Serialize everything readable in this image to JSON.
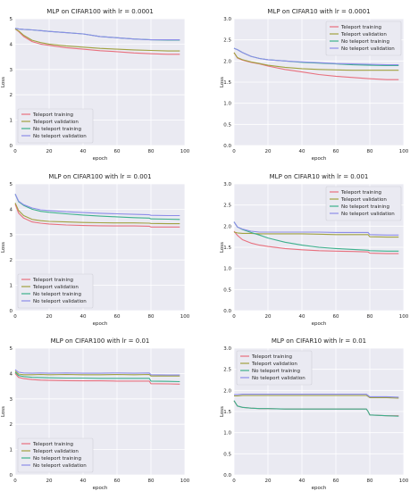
{
  "figure": {
    "style": "seaborn-darkgrid",
    "plot_bg": "#eaeaf2",
    "grid_color": "#ffffff",
    "series_colors": {
      "Teleport training": "#e8707e",
      "Teleport validation": "#a0a140",
      "No teleport training": "#3db08c",
      "No teleport validation": "#8c8ce8"
    }
  },
  "chart_data": [
    {
      "type": "line",
      "title": "MLP on CIFAR100 with lr = 0.0001",
      "xlabel": "epoch",
      "ylabel": "Loss",
      "xlim": [
        0,
        100
      ],
      "ylim": [
        0,
        5
      ],
      "xticks": [
        0,
        20,
        40,
        60,
        80,
        100
      ],
      "yticks": [
        0,
        1,
        2,
        3,
        4,
        5
      ],
      "xtick_labels": [
        "0",
        "20",
        "40",
        "60",
        "80",
        "100"
      ],
      "ytick_labels": [
        "0",
        "1",
        "2",
        "3",
        "4",
        "5"
      ],
      "legend_loc": "lower-left",
      "x": [
        0,
        2,
        5,
        10,
        15,
        20,
        30,
        40,
        50,
        60,
        70,
        80,
        90,
        97
      ],
      "series": [
        {
          "name": "Teleport training",
          "values": [
            4.6,
            4.5,
            4.3,
            4.1,
            4.0,
            3.95,
            3.86,
            3.8,
            3.74,
            3.7,
            3.65,
            3.62,
            3.6,
            3.6
          ]
        },
        {
          "name": "Teleport validation",
          "values": [
            4.6,
            4.52,
            4.35,
            4.15,
            4.06,
            4.0,
            3.93,
            3.88,
            3.83,
            3.8,
            3.77,
            3.75,
            3.73,
            3.73
          ]
        },
        {
          "name": "No teleport training",
          "values": [
            4.62,
            4.6,
            4.58,
            4.56,
            4.53,
            4.5,
            4.45,
            4.4,
            4.3,
            4.25,
            4.2,
            4.17,
            4.16,
            4.16
          ]
        },
        {
          "name": "No teleport validation",
          "values": [
            4.62,
            4.6,
            4.58,
            4.56,
            4.53,
            4.5,
            4.45,
            4.4,
            4.3,
            4.25,
            4.2,
            4.17,
            4.17,
            4.17
          ]
        }
      ]
    },
    {
      "type": "line",
      "title": "MLP on CIFAR10 with lr = 0.0001",
      "xlabel": "epoch",
      "ylabel": "Loss",
      "xlim": [
        0,
        100
      ],
      "ylim": [
        0,
        3
      ],
      "xticks": [
        0,
        20,
        40,
        60,
        80,
        100
      ],
      "yticks": [
        0,
        0.5,
        1.0,
        1.5,
        2.0,
        2.5,
        3.0
      ],
      "xtick_labels": [
        "0",
        "20",
        "40",
        "60",
        "80",
        "100"
      ],
      "ytick_labels": [
        "0.0",
        "0.5",
        "1.0",
        "1.5",
        "2.0",
        "2.5",
        "3.0"
      ],
      "legend_loc": "upper-right",
      "x": [
        0,
        2,
        5,
        10,
        15,
        20,
        30,
        40,
        50,
        60,
        70,
        80,
        90,
        97
      ],
      "series": [
        {
          "name": "Teleport training",
          "values": [
            2.2,
            2.07,
            2.02,
            1.97,
            1.93,
            1.88,
            1.8,
            1.74,
            1.68,
            1.64,
            1.61,
            1.58,
            1.56,
            1.56
          ]
        },
        {
          "name": "Teleport validation",
          "values": [
            2.2,
            2.08,
            2.03,
            1.98,
            1.94,
            1.9,
            1.85,
            1.82,
            1.8,
            1.79,
            1.78,
            1.78,
            1.78,
            1.78
          ]
        },
        {
          "name": "No teleport training",
          "values": [
            2.3,
            2.27,
            2.2,
            2.11,
            2.06,
            2.03,
            2.0,
            1.97,
            1.95,
            1.93,
            1.91,
            1.9,
            1.89,
            1.89
          ]
        },
        {
          "name": "No teleport validation",
          "values": [
            2.3,
            2.27,
            2.2,
            2.11,
            2.06,
            2.03,
            2.0,
            1.98,
            1.96,
            1.94,
            1.93,
            1.92,
            1.91,
            1.91
          ]
        }
      ]
    },
    {
      "type": "line",
      "title": "MLP on CIFAR100 with lr = 0.001",
      "xlabel": "epoch",
      "ylabel": "Loss",
      "xlim": [
        0,
        100
      ],
      "ylim": [
        0,
        5
      ],
      "xticks": [
        0,
        20,
        40,
        60,
        80,
        100
      ],
      "yticks": [
        0,
        1,
        2,
        3,
        4,
        5
      ],
      "xtick_labels": [
        "0",
        "20",
        "40",
        "60",
        "80",
        "100"
      ],
      "ytick_labels": [
        "0",
        "1",
        "2",
        "3",
        "4",
        "5"
      ],
      "legend_loc": "lower-left",
      "x": [
        0,
        2,
        5,
        10,
        15,
        20,
        30,
        40,
        50,
        60,
        70,
        79,
        80,
        90,
        97
      ],
      "series": [
        {
          "name": "Teleport training",
          "values": [
            4.2,
            3.85,
            3.65,
            3.5,
            3.45,
            3.42,
            3.38,
            3.36,
            3.35,
            3.34,
            3.34,
            3.33,
            3.3,
            3.3,
            3.3
          ]
        },
        {
          "name": "Teleport validation",
          "values": [
            4.25,
            3.95,
            3.75,
            3.6,
            3.55,
            3.52,
            3.5,
            3.48,
            3.47,
            3.46,
            3.46,
            3.45,
            3.44,
            3.43,
            3.43
          ]
        },
        {
          "name": "No teleport training",
          "values": [
            4.6,
            4.3,
            4.15,
            4.0,
            3.92,
            3.88,
            3.82,
            3.77,
            3.73,
            3.7,
            3.67,
            3.65,
            3.62,
            3.61,
            3.6
          ]
        },
        {
          "name": "No teleport validation",
          "values": [
            4.6,
            4.32,
            4.18,
            4.05,
            3.98,
            3.95,
            3.9,
            3.87,
            3.84,
            3.82,
            3.8,
            3.78,
            3.76,
            3.75,
            3.75
          ]
        }
      ]
    },
    {
      "type": "line",
      "title": "MLP on CIFAR10 with lr = 0.001",
      "xlabel": "epoch",
      "ylabel": "Loss",
      "xlim": [
        0,
        100
      ],
      "ylim": [
        0,
        3
      ],
      "xticks": [
        0,
        20,
        40,
        60,
        80,
        100
      ],
      "yticks": [
        0,
        0.5,
        1.0,
        1.5,
        2.0,
        2.5,
        3.0
      ],
      "xtick_labels": [
        "0",
        "20",
        "40",
        "60",
        "80",
        "100"
      ],
      "ytick_labels": [
        "0.0",
        "0.5",
        "1.0",
        "1.5",
        "2.0",
        "2.5",
        "3.0"
      ],
      "legend_loc": "upper-right",
      "x": [
        0,
        2,
        5,
        10,
        15,
        20,
        30,
        40,
        50,
        60,
        70,
        79,
        80,
        90,
        97
      ],
      "series": [
        {
          "name": "Teleport training",
          "values": [
            1.88,
            1.78,
            1.68,
            1.6,
            1.55,
            1.52,
            1.47,
            1.44,
            1.42,
            1.41,
            1.4,
            1.39,
            1.36,
            1.35,
            1.35
          ]
        },
        {
          "name": "Teleport validation",
          "values": [
            1.86,
            1.84,
            1.83,
            1.83,
            1.82,
            1.82,
            1.82,
            1.82,
            1.81,
            1.8,
            1.8,
            1.8,
            1.75,
            1.74,
            1.74
          ]
        },
        {
          "name": "No teleport training",
          "values": [
            2.1,
            1.98,
            1.92,
            1.85,
            1.79,
            1.72,
            1.62,
            1.55,
            1.5,
            1.47,
            1.45,
            1.43,
            1.42,
            1.41,
            1.41
          ]
        },
        {
          "name": "No teleport validation",
          "values": [
            2.1,
            1.98,
            1.93,
            1.88,
            1.86,
            1.86,
            1.86,
            1.86,
            1.86,
            1.85,
            1.85,
            1.85,
            1.8,
            1.79,
            1.79
          ]
        }
      ]
    },
    {
      "type": "line",
      "title": "MLP on CIFAR100 with lr = 0.01",
      "xlabel": "epoch",
      "ylabel": "Loss",
      "xlim": [
        0,
        100
      ],
      "ylim": [
        0,
        5
      ],
      "xticks": [
        0,
        20,
        40,
        60,
        80,
        100
      ],
      "yticks": [
        0,
        1,
        2,
        3,
        4,
        5
      ],
      "xtick_labels": [
        "0",
        "20",
        "40",
        "60",
        "80",
        "100"
      ],
      "ytick_labels": [
        "0",
        "1",
        "2",
        "3",
        "4",
        "5"
      ],
      "legend_loc": "lower-left",
      "x": [
        0,
        2,
        5,
        10,
        15,
        20,
        30,
        40,
        50,
        60,
        70,
        79,
        80,
        90,
        97
      ],
      "series": [
        {
          "name": "Teleport training",
          "values": [
            4.0,
            3.85,
            3.8,
            3.76,
            3.74,
            3.73,
            3.72,
            3.71,
            3.71,
            3.7,
            3.7,
            3.7,
            3.6,
            3.59,
            3.58
          ]
        },
        {
          "name": "Teleport validation",
          "values": [
            4.1,
            3.98,
            3.95,
            3.95,
            3.96,
            3.95,
            3.96,
            3.95,
            3.95,
            3.96,
            3.95,
            3.96,
            3.9,
            3.9,
            3.9
          ]
        },
        {
          "name": "No teleport training",
          "values": [
            4.05,
            3.92,
            3.88,
            3.85,
            3.84,
            3.83,
            3.82,
            3.82,
            3.81,
            3.81,
            3.81,
            3.81,
            3.7,
            3.69,
            3.68
          ]
        },
        {
          "name": "No teleport validation",
          "values": [
            4.15,
            4.05,
            4.02,
            4.01,
            4.02,
            4.01,
            4.02,
            4.01,
            4.01,
            4.02,
            4.01,
            4.02,
            3.95,
            3.94,
            3.94
          ]
        }
      ]
    },
    {
      "type": "line",
      "title": "MLP on CIFAR10 with lr = 0.01",
      "xlabel": "epoch",
      "ylabel": "Loss",
      "xlim": [
        0,
        100
      ],
      "ylim": [
        0,
        3
      ],
      "xticks": [
        0,
        20,
        40,
        60,
        80,
        100
      ],
      "yticks": [
        0,
        0.5,
        1.0,
        1.5,
        2.0,
        2.5,
        3.0
      ],
      "xtick_labels": [
        "0",
        "20",
        "40",
        "60",
        "80",
        "100"
      ],
      "ytick_labels": [
        "0.0",
        "0.5",
        "1.0",
        "1.5",
        "2.0",
        "2.5",
        "3.0"
      ],
      "legend_loc": "upper-left",
      "x": [
        0,
        2,
        5,
        10,
        15,
        20,
        30,
        40,
        50,
        60,
        70,
        78,
        79,
        80,
        90,
        97
      ],
      "series": [
        {
          "name": "Teleport training",
          "values": [
            1.75,
            1.63,
            1.6,
            1.58,
            1.57,
            1.57,
            1.56,
            1.56,
            1.56,
            1.56,
            1.56,
            1.56,
            1.5,
            1.42,
            1.4,
            1.4
          ]
        },
        {
          "name": "Teleport validation",
          "values": [
            1.87,
            1.87,
            1.88,
            1.88,
            1.88,
            1.88,
            1.88,
            1.88,
            1.88,
            1.88,
            1.88,
            1.88,
            1.86,
            1.83,
            1.83,
            1.82
          ]
        },
        {
          "name": "No teleport training",
          "values": [
            1.76,
            1.63,
            1.6,
            1.58,
            1.57,
            1.57,
            1.56,
            1.56,
            1.56,
            1.56,
            1.56,
            1.56,
            1.5,
            1.42,
            1.4,
            1.39
          ]
        },
        {
          "name": "No teleport validation",
          "values": [
            1.9,
            1.9,
            1.91,
            1.91,
            1.91,
            1.91,
            1.91,
            1.91,
            1.91,
            1.91,
            1.91,
            1.91,
            1.88,
            1.85,
            1.85,
            1.84
          ]
        }
      ]
    }
  ]
}
